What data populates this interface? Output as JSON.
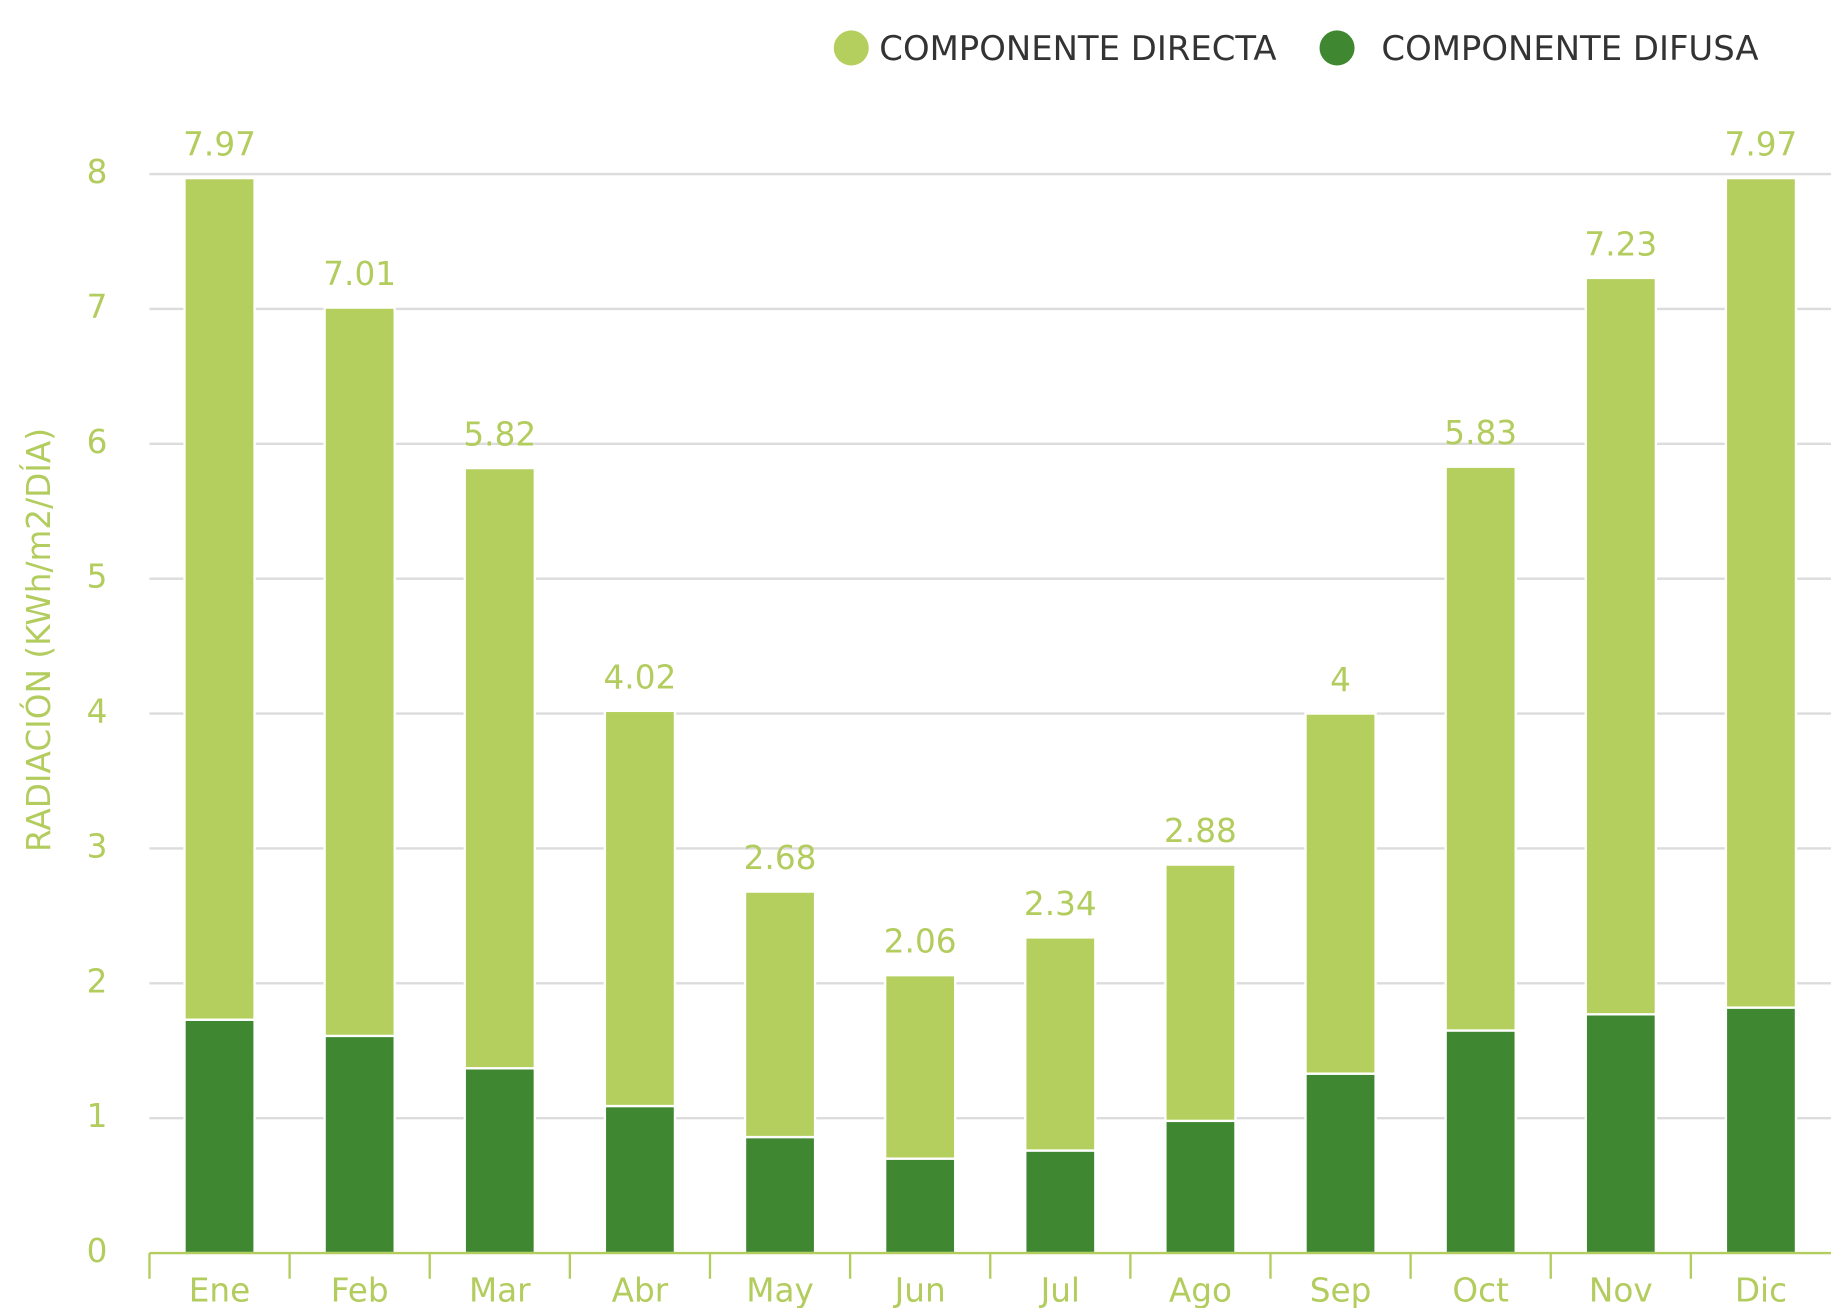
{
  "chart_data": {
    "type": "stacked_bar",
    "y_label": "RADIACIÓN (KWh/m2/DÍA)",
    "categories": [
      "Ene",
      "Feb",
      "Mar",
      "Abr",
      "May",
      "Jun",
      "Jul",
      "Ago",
      "Sep",
      "Oct",
      "Nov",
      "Dic"
    ],
    "series": [
      {
        "name": "COMPONENTE DIFUSA",
        "color": "#3f8731",
        "values": [
          1.73,
          1.61,
          1.37,
          1.09,
          0.86,
          0.7,
          0.76,
          0.98,
          1.33,
          1.65,
          1.77,
          1.82
        ]
      },
      {
        "name": "COMPONENTE DIRECTA",
        "color": "#b5cf5f",
        "values": [
          6.24,
          5.4,
          4.45,
          2.93,
          1.82,
          1.36,
          1.58,
          1.9,
          2.67,
          4.18,
          5.46,
          6.15
        ]
      }
    ],
    "totals": [
      7.97,
      7.01,
      5.82,
      4.02,
      2.68,
      2.06,
      2.34,
      2.88,
      4,
      5.83,
      7.23,
      7.97
    ],
    "ylim": [
      0,
      8
    ],
    "yticks": [
      0,
      1,
      2,
      3,
      4,
      5,
      6,
      7,
      8
    ],
    "grid": true
  }
}
